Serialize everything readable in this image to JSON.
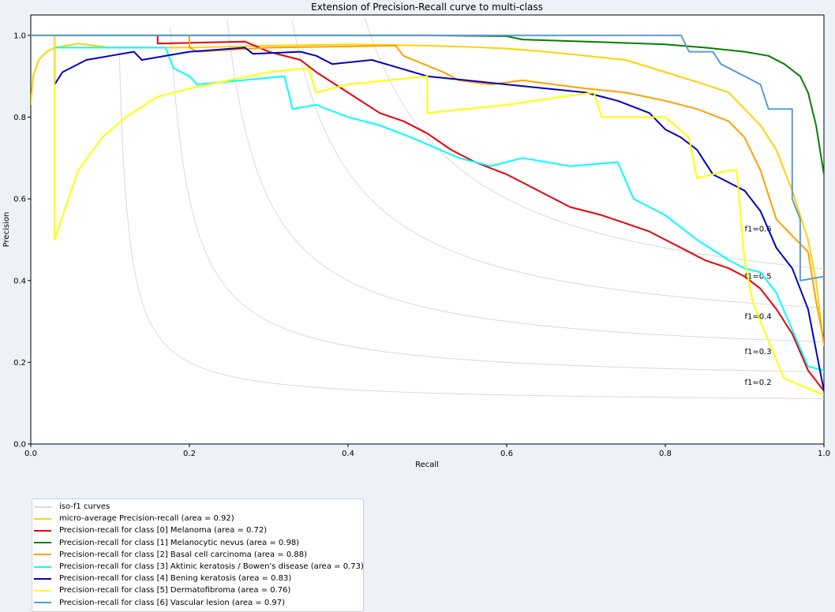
{
  "chart_data": {
    "type": "line",
    "title": "Extension of Precision-Recall curve to multi-class",
    "xlabel": "Recall",
    "ylabel": "Precision",
    "xlim": [
      0.0,
      1.0
    ],
    "ylim": [
      0.0,
      1.05
    ],
    "xticks": [
      "0.0",
      "0.2",
      "0.4",
      "0.6",
      "0.8",
      "1.0"
    ],
    "yticks": [
      "0.0",
      "0.2",
      "0.4",
      "0.6",
      "0.8",
      "1.0"
    ],
    "grid": false,
    "legend_position": "below-left",
    "iso_f1": {
      "color": "#d9d9d9",
      "values": [
        0.2,
        0.3,
        0.4,
        0.5,
        0.6
      ],
      "labels": [
        "f1=0.2",
        "f1=0.3",
        "f1=0.4",
        "f1=0.5",
        "f1=0.6"
      ]
    },
    "series": [
      {
        "name": "iso-f1 curves",
        "color": "#d9d9d9",
        "x": [],
        "y": []
      },
      {
        "name": "micro-average Precision-recall (area = 0.92)",
        "color": "#ffd200",
        "x": [
          0.0,
          0.003,
          0.01,
          0.02,
          0.03,
          0.06,
          0.1,
          0.15,
          0.2,
          0.3,
          0.4,
          0.5,
          0.55,
          0.6,
          0.65,
          0.7,
          0.75,
          0.8,
          0.85,
          0.88,
          0.9,
          0.92,
          0.94,
          0.96,
          0.98,
          0.99,
          1.0
        ],
        "y": [
          0.83,
          0.9,
          0.94,
          0.96,
          0.97,
          0.98,
          0.97,
          0.97,
          0.97,
          0.975,
          0.978,
          0.975,
          0.972,
          0.968,
          0.96,
          0.95,
          0.94,
          0.91,
          0.88,
          0.86,
          0.82,
          0.78,
          0.72,
          0.62,
          0.5,
          0.4,
          0.24
        ]
      },
      {
        "name": "Precision-recall for class [0] Melanoma (area = 0.72)",
        "color": "#e8000b",
        "x": [
          0.16,
          0.16,
          0.27,
          0.3,
          0.34,
          0.36,
          0.4,
          0.44,
          0.47,
          0.5,
          0.53,
          0.56,
          0.6,
          0.62,
          0.65,
          0.68,
          0.72,
          0.75,
          0.78,
          0.8,
          0.82,
          0.85,
          0.88,
          0.9,
          0.92,
          0.94,
          0.96,
          0.98,
          1.0
        ],
        "y": [
          1.0,
          0.98,
          0.985,
          0.96,
          0.94,
          0.91,
          0.86,
          0.81,
          0.79,
          0.76,
          0.72,
          0.69,
          0.66,
          0.64,
          0.61,
          0.58,
          0.56,
          0.54,
          0.52,
          0.5,
          0.48,
          0.45,
          0.43,
          0.41,
          0.38,
          0.33,
          0.27,
          0.18,
          0.13
        ]
      },
      {
        "name": "Precision-recall for class [1] Melanocytic nevus (area = 0.98)",
        "color": "#008000",
        "x": [
          0.0,
          0.5,
          0.6,
          0.62,
          0.7,
          0.8,
          0.85,
          0.9,
          0.93,
          0.95,
          0.97,
          0.98,
          0.99,
          1.0
        ],
        "y": [
          1.0,
          1.0,
          0.998,
          0.99,
          0.985,
          0.978,
          0.97,
          0.96,
          0.95,
          0.93,
          0.9,
          0.86,
          0.78,
          0.66
        ]
      },
      {
        "name": "Precision-recall for class [2] Basal cell carcinoma (area = 0.88)",
        "color": "#ff9f00",
        "x": [
          0.2,
          0.2,
          0.21,
          0.3,
          0.46,
          0.47,
          0.52,
          0.54,
          0.58,
          0.62,
          0.66,
          0.7,
          0.75,
          0.8,
          0.84,
          0.88,
          0.9,
          0.92,
          0.94,
          0.96,
          0.98,
          0.99,
          1.0
        ],
        "y": [
          1.0,
          0.97,
          0.96,
          0.97,
          0.975,
          0.95,
          0.91,
          0.89,
          0.88,
          0.89,
          0.88,
          0.87,
          0.86,
          0.84,
          0.82,
          0.79,
          0.75,
          0.67,
          0.55,
          0.51,
          0.47,
          0.35,
          0.25
        ]
      },
      {
        "name": "Precision-recall for class [3] Aktinic keratosis / Bowen's disease (area = 0.73)",
        "color": "#00ffff",
        "x": [
          0.03,
          0.17,
          0.18,
          0.2,
          0.21,
          0.32,
          0.33,
          0.36,
          0.4,
          0.44,
          0.48,
          0.54,
          0.58,
          0.62,
          0.68,
          0.74,
          0.76,
          0.8,
          0.84,
          0.88,
          0.9,
          0.92,
          0.94,
          0.96,
          0.98,
          1.0
        ],
        "y": [
          0.97,
          0.97,
          0.92,
          0.9,
          0.88,
          0.9,
          0.82,
          0.83,
          0.8,
          0.78,
          0.75,
          0.7,
          0.68,
          0.7,
          0.68,
          0.69,
          0.6,
          0.56,
          0.5,
          0.45,
          0.43,
          0.42,
          0.37,
          0.28,
          0.19,
          0.18
        ]
      },
      {
        "name": "Precision-recall for class [4] Bening keratosis (area = 0.83)",
        "color": "#0000c8",
        "x": [
          0.03,
          0.03,
          0.04,
          0.07,
          0.1,
          0.13,
          0.14,
          0.2,
          0.27,
          0.28,
          0.34,
          0.36,
          0.38,
          0.43,
          0.5,
          0.55,
          0.6,
          0.65,
          0.7,
          0.74,
          0.78,
          0.8,
          0.82,
          0.84,
          0.86,
          0.88,
          0.9,
          0.92,
          0.94,
          0.96,
          0.98,
          1.0
        ],
        "y": [
          1.0,
          0.88,
          0.91,
          0.94,
          0.95,
          0.96,
          0.94,
          0.96,
          0.97,
          0.955,
          0.96,
          0.95,
          0.93,
          0.94,
          0.9,
          0.89,
          0.88,
          0.87,
          0.86,
          0.84,
          0.81,
          0.77,
          0.75,
          0.72,
          0.66,
          0.64,
          0.62,
          0.57,
          0.48,
          0.43,
          0.33,
          0.13
        ]
      },
      {
        "name": "Precision-recall for class [5] Dermatofibroma (area = 0.76)",
        "color": "#ffff00",
        "x": [
          0.0,
          0.03,
          0.03,
          0.06,
          0.09,
          0.12,
          0.16,
          0.2,
          0.25,
          0.3,
          0.35,
          0.36,
          0.4,
          0.5,
          0.5,
          0.6,
          0.67,
          0.71,
          0.72,
          0.8,
          0.83,
          0.84,
          0.88,
          0.89,
          0.9,
          0.91,
          0.92,
          0.95,
          1.0
        ],
        "y": [
          1.0,
          1.0,
          0.5,
          0.67,
          0.75,
          0.8,
          0.85,
          0.87,
          0.89,
          0.91,
          0.92,
          0.86,
          0.88,
          0.9,
          0.81,
          0.83,
          0.85,
          0.86,
          0.8,
          0.8,
          0.75,
          0.65,
          0.67,
          0.67,
          0.45,
          0.35,
          0.3,
          0.16,
          0.12
        ]
      },
      {
        "name": "Precision-recall for class [6] Vascular lesion (area = 0.97)",
        "color": "#5a9bd4",
        "x": [
          0.0,
          0.82,
          0.83,
          0.86,
          0.87,
          0.9,
          0.92,
          0.93,
          0.96,
          0.96,
          0.97,
          0.97,
          1.0
        ],
        "y": [
          1.0,
          1.0,
          0.96,
          0.96,
          0.93,
          0.9,
          0.88,
          0.82,
          0.82,
          0.6,
          0.55,
          0.4,
          0.41
        ]
      }
    ]
  }
}
